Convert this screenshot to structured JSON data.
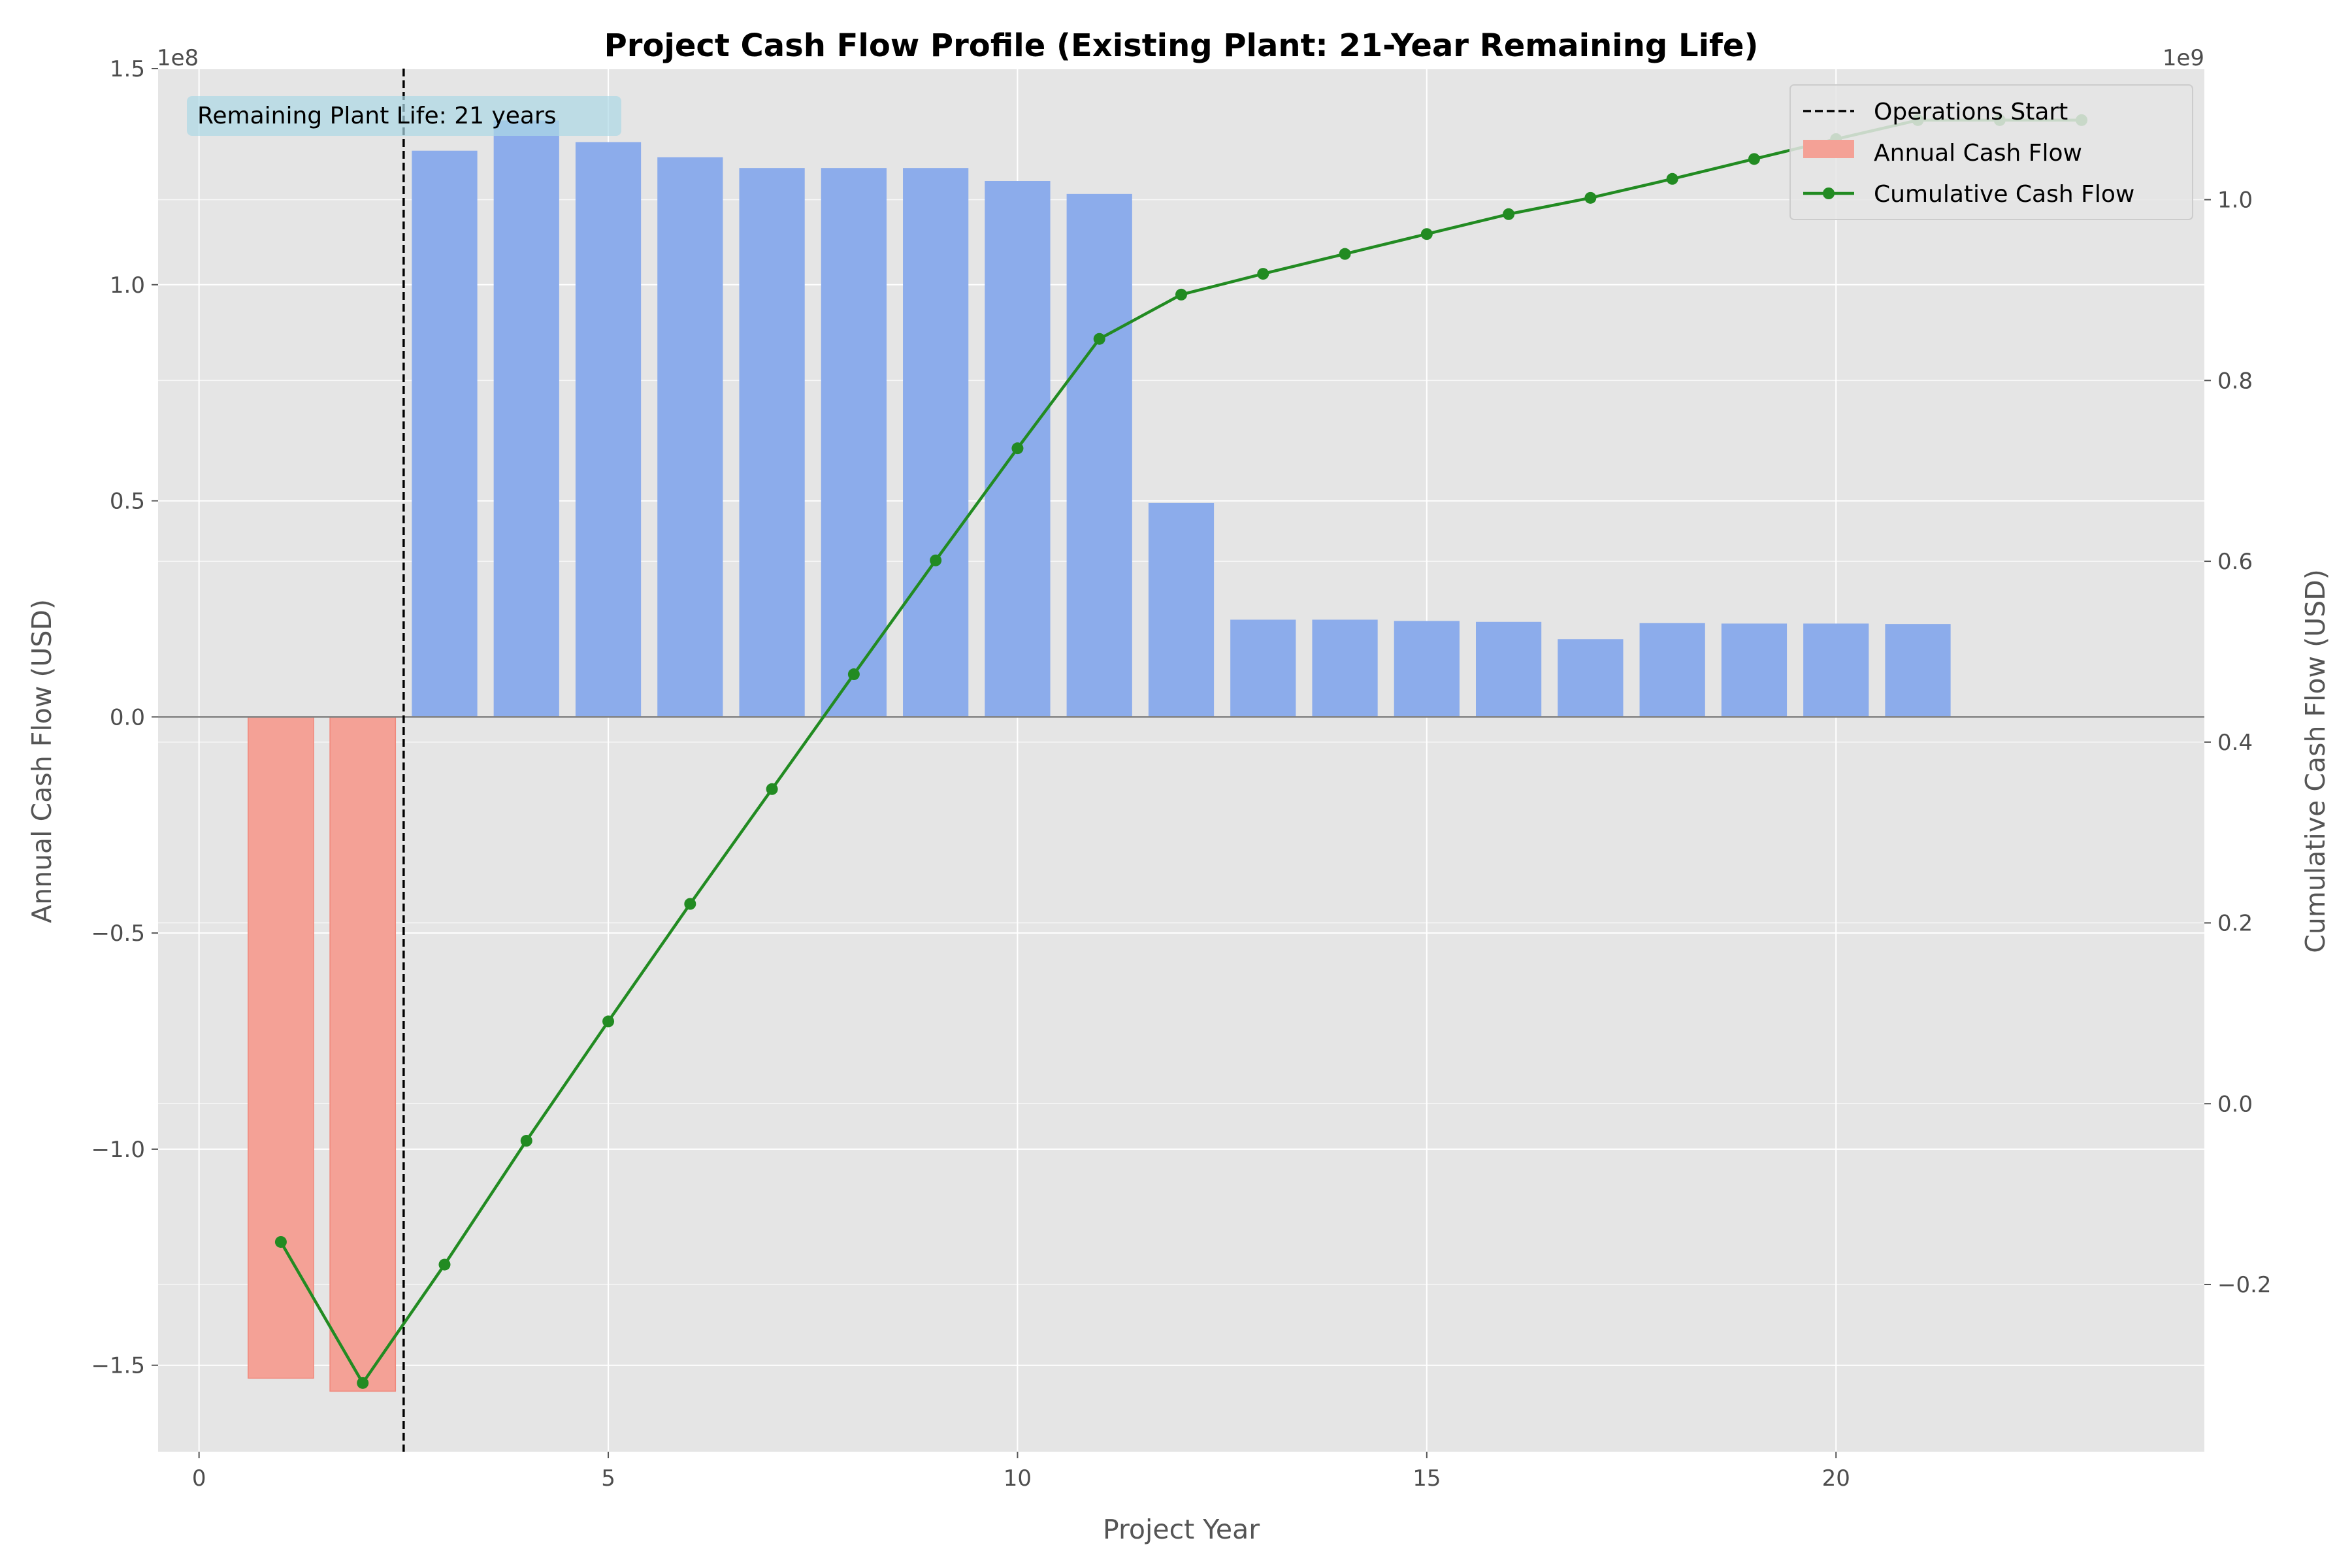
{
  "chart_data": {
    "type": "bar",
    "title": "Project Cash Flow Profile (Existing Plant: 21-Year Remaining Life)",
    "xlabel": "Project Year",
    "ylabel_left": "Annual Cash Flow (USD)",
    "ylabel_right": "Cumulative Cash Flow (USD)",
    "offset_left": "1e8",
    "offset_right": "1e9",
    "xlim": [
      -0.5,
      24.5
    ],
    "ylim_left": [
      -1.7,
      1.5
    ],
    "ylim_right": [
      -0.385,
      1.145
    ],
    "x_ticks": [
      0,
      5,
      10,
      15,
      20
    ],
    "x_tick_labels": [
      "0",
      "5",
      "10",
      "15",
      "20"
    ],
    "y_left_ticks": [
      -1.5,
      -1.0,
      -0.5,
      0.0,
      0.5,
      1.0,
      1.5
    ],
    "y_left_tick_labels": [
      "−1.5",
      "−1.0",
      "−0.5",
      "0.0",
      "0.5",
      "1.0",
      "1.5"
    ],
    "y_right_ticks": [
      -0.2,
      0.0,
      0.2,
      0.4,
      0.6,
      0.8,
      1.0
    ],
    "y_right_tick_labels": [
      "−0.2",
      "0.0",
      "0.2",
      "0.4",
      "0.6",
      "0.8",
      "1.0"
    ],
    "grid": true,
    "legend_position": "top-right",
    "annotation": "Remaining Plant Life: 21 years",
    "operations_start_x": 2.5,
    "colors": {
      "negative_bar": "#f4a196",
      "positive_bar": "#8caceb",
      "cumulative_line": "#228b22",
      "vline": "#000000",
      "zero_line": "#808080",
      "plot_background": "#e5e5e5",
      "annotation_box": "#add8e6"
    },
    "series": [
      {
        "name": "Annual Cash Flow",
        "kind": "bar",
        "axis": "left",
        "x": [
          1,
          2,
          3,
          4,
          5,
          6,
          7,
          8,
          9,
          10,
          11,
          12,
          13,
          14,
          15,
          16,
          17,
          18,
          19,
          20,
          21
        ],
        "values": [
          -1.53,
          -1.56,
          1.31,
          1.38,
          1.33,
          1.295,
          1.27,
          1.27,
          1.27,
          1.24,
          1.21,
          0.495,
          0.225,
          0.225,
          0.222,
          0.22,
          0.18,
          0.217,
          0.216,
          0.216,
          0.215
        ]
      },
      {
        "name": "Cumulative Cash Flow",
        "kind": "line",
        "axis": "right",
        "x": [
          1,
          2,
          3,
          4,
          5,
          6,
          7,
          8,
          9,
          10,
          11,
          12,
          13,
          14,
          15,
          16,
          17,
          18,
          19,
          20,
          21,
          22,
          23
        ],
        "values": [
          -0.153,
          -0.309,
          -0.178,
          -0.041,
          0.091,
          0.221,
          0.348,
          0.475,
          0.601,
          0.725,
          0.846,
          0.895,
          0.918,
          0.94,
          0.962,
          0.984,
          1.002,
          1.023,
          1.045,
          1.067,
          1.088,
          1.088,
          1.088
        ]
      }
    ],
    "legend": [
      {
        "label": "Operations Start",
        "kind": "dashed-line"
      },
      {
        "label": "Annual Cash Flow",
        "kind": "patch"
      },
      {
        "label": "Cumulative Cash Flow",
        "kind": "line-marker"
      }
    ]
  }
}
